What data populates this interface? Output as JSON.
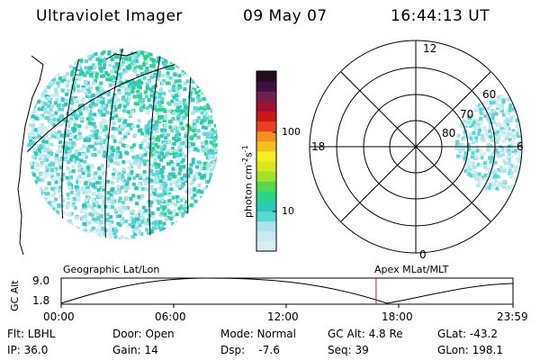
{
  "header": {
    "instrument": "Ultraviolet Imager",
    "date": "09 May 07",
    "time": "16:44:13 UT"
  },
  "colorbar": {
    "unit_label": "photon cm",
    "unit_exp1": "-2",
    "unit_mid": "s",
    "unit_exp2": "-1",
    "tick_100": "100",
    "tick_10": "10",
    "colors": [
      "#d8eef2",
      "#c9eaf0",
      "#a8e4e8",
      "#5bd6d0",
      "#2cc8b8",
      "#2ad48a",
      "#58d84a",
      "#a2e030",
      "#d8e820",
      "#f2f020",
      "#f2c020",
      "#f29020",
      "#e84020",
      "#c81818",
      "#a01030",
      "#702050",
      "#401040",
      "#201020"
    ]
  },
  "earth_image": {
    "label": "Geographic Lat/Lon"
  },
  "polar_plot": {
    "label": "Apex MLat/MLT",
    "mlt_labels": {
      "top": "12",
      "left": "18",
      "right": "6",
      "bottom": "0"
    },
    "lat_labels": [
      "60",
      "70",
      "80"
    ]
  },
  "altitude_plot": {
    "ylabel": "GC Alt",
    "ymax": "9.0",
    "ymin": "1.8",
    "time_ticks": [
      "00:00",
      "06:00",
      "12:00",
      "18:00",
      "23:59"
    ],
    "current_time_fraction": 0.697
  },
  "info": {
    "flt": "Flt: LBHL",
    "ip": "IP: 36.0",
    "door": "Door: Open",
    "gain": "Gain: 14",
    "mode": "Mode: Normal",
    "dsp": "Dsp:    -7.6",
    "gc_alt": "GC Alt: 4.8 Re",
    "seq": "Seq: 39",
    "glat": "GLat: -43.2",
    "glon": "GLon: 198.1"
  }
}
